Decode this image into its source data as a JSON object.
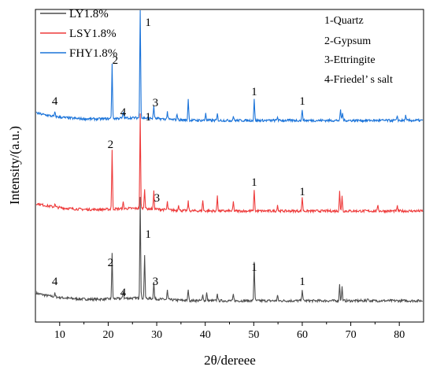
{
  "chart_data": {
    "type": "line",
    "xlabel": "2θ/dereee",
    "ylabel": "Intensity/(a.u.)",
    "xlim": [
      5,
      85
    ],
    "x_ticks": [
      "10",
      "20",
      "30",
      "40",
      "50",
      "60",
      "70",
      "80"
    ],
    "legend_position": "top-left",
    "grid": false,
    "series": [
      {
        "name": "LY1.8%",
        "color": "#4d4d4d",
        "peaks": [
          [
            9.0,
            4
          ],
          [
            20.8,
            57
          ],
          [
            23.1,
            10
          ],
          [
            26.6,
            130
          ],
          [
            27.5,
            55
          ],
          [
            29.4,
            22
          ],
          [
            32.2,
            12
          ],
          [
            36.5,
            15
          ],
          [
            39.5,
            9
          ],
          [
            40.3,
            10
          ],
          [
            42.5,
            10
          ],
          [
            45.8,
            8
          ],
          [
            50.1,
            50
          ],
          [
            54.9,
            7
          ],
          [
            60.0,
            15
          ],
          [
            67.7,
            22
          ],
          [
            68.2,
            18
          ],
          [
            73.5,
            4
          ]
        ]
      },
      {
        "name": "LSY1.8%",
        "color": "#ee3a3a",
        "peaks": [
          [
            9.0,
            4
          ],
          [
            20.8,
            75
          ],
          [
            23.1,
            8
          ],
          [
            26.6,
            120
          ],
          [
            27.5,
            26
          ],
          [
            29.4,
            22
          ],
          [
            32.2,
            10
          ],
          [
            34.5,
            8
          ],
          [
            36.5,
            12
          ],
          [
            39.5,
            14
          ],
          [
            42.5,
            20
          ],
          [
            45.8,
            12
          ],
          [
            50.1,
            28
          ],
          [
            54.9,
            8
          ],
          [
            60.0,
            18
          ],
          [
            67.7,
            26
          ],
          [
            68.2,
            20
          ],
          [
            75.6,
            8
          ],
          [
            79.6,
            6
          ]
        ]
      },
      {
        "name": "FHY1.8%",
        "color": "#1a73d9",
        "peaks": [
          [
            9.0,
            5
          ],
          [
            20.8,
            70
          ],
          [
            23.1,
            8
          ],
          [
            26.6,
            150
          ],
          [
            29.4,
            16
          ],
          [
            32.2,
            10
          ],
          [
            34.2,
            8
          ],
          [
            36.5,
            28
          ],
          [
            40.1,
            10
          ],
          [
            42.5,
            8
          ],
          [
            45.8,
            6
          ],
          [
            50.1,
            28
          ],
          [
            54.9,
            5
          ],
          [
            60.0,
            14
          ],
          [
            67.9,
            14
          ],
          [
            68.3,
            10
          ],
          [
            79.6,
            6
          ],
          [
            81.3,
            6
          ]
        ]
      }
    ],
    "peak_labels": [
      {
        "text": "1",
        "series": 2,
        "x": 26.6
      },
      {
        "text": "2",
        "series": 2,
        "x": 20.8
      },
      {
        "text": "3",
        "series": 2,
        "x": 29.4
      },
      {
        "text": "4",
        "series": 2,
        "x": 9.0
      },
      {
        "text": "4",
        "series": 2,
        "x": 23.1
      },
      {
        "text": "1",
        "series": 2,
        "x": 50.1
      },
      {
        "text": "1",
        "series": 2,
        "x": 60.0
      },
      {
        "text": "2",
        "series": 1,
        "x": 20.8
      },
      {
        "text": "1",
        "series": 1,
        "x": 26.6
      },
      {
        "text": "3",
        "series": 1,
        "x": 29.4
      },
      {
        "text": "1",
        "series": 1,
        "x": 50.1
      },
      {
        "text": "1",
        "series": 1,
        "x": 60.0
      },
      {
        "text": "1",
        "series": 0,
        "x": 26.6
      },
      {
        "text": "2",
        "series": 0,
        "x": 20.8
      },
      {
        "text": "3",
        "series": 0,
        "x": 29.4
      },
      {
        "text": "4",
        "series": 0,
        "x": 9.0
      },
      {
        "text": "4",
        "series": 0,
        "x": 23.1
      },
      {
        "text": "1",
        "series": 0,
        "x": 50.1
      },
      {
        "text": "1",
        "series": 0,
        "x": 60.0
      }
    ],
    "annotations": [
      "1-Quartz",
      "2-Gypsum",
      "3-Ettringite",
      "4-Friedel’ s salt"
    ]
  }
}
